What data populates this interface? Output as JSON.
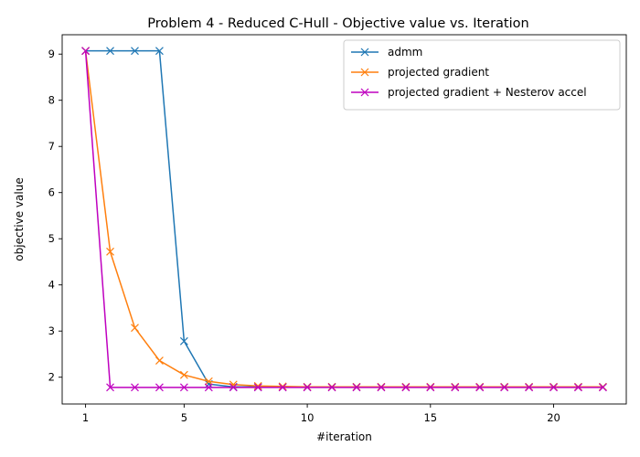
{
  "chart_data": {
    "type": "line",
    "title": "Problem 4 - Reduced C-Hull - Objective value vs. Iteration",
    "xlabel": "#iteration",
    "ylabel": "objective value",
    "xlim": [
      0.05,
      22.95
    ],
    "ylim": [
      1.42,
      9.42
    ],
    "x_ticks": [
      1,
      5,
      10,
      15,
      20
    ],
    "y_ticks": [
      2,
      3,
      4,
      5,
      6,
      7,
      8,
      9
    ],
    "grid": false,
    "legend_position": "top-right",
    "x": [
      1,
      2,
      3,
      4,
      5,
      6,
      7,
      8,
      9,
      10,
      11,
      12,
      13,
      14,
      15,
      16,
      17,
      18,
      19,
      20,
      21,
      22
    ],
    "series": [
      {
        "name": "admm",
        "color": "#1f77b4",
        "marker": "x",
        "values": [
          9.07,
          9.07,
          9.07,
          9.07,
          2.78,
          1.85,
          1.79,
          1.79,
          1.79,
          1.79,
          1.79,
          1.79,
          1.79,
          1.79,
          1.79,
          1.79,
          1.79,
          1.79,
          1.79,
          1.79,
          1.79,
          1.79
        ]
      },
      {
        "name": "projected gradient",
        "color": "#ff7f0e",
        "marker": "x",
        "values": [
          9.07,
          4.72,
          3.07,
          2.36,
          2.05,
          1.91,
          1.84,
          1.81,
          1.8,
          1.79,
          1.79,
          1.79,
          1.79,
          1.79,
          1.79,
          1.79,
          1.79,
          1.79,
          1.79,
          1.79,
          1.79,
          1.79
        ]
      },
      {
        "name": "projected gradient + Nesterov accel",
        "color": "#bf00bf",
        "marker": "x",
        "values": [
          9.07,
          1.78,
          1.78,
          1.78,
          1.78,
          1.78,
          1.78,
          1.78,
          1.78,
          1.78,
          1.78,
          1.78,
          1.78,
          1.78,
          1.78,
          1.78,
          1.78,
          1.78,
          1.78,
          1.78,
          1.78,
          1.78
        ]
      }
    ]
  }
}
